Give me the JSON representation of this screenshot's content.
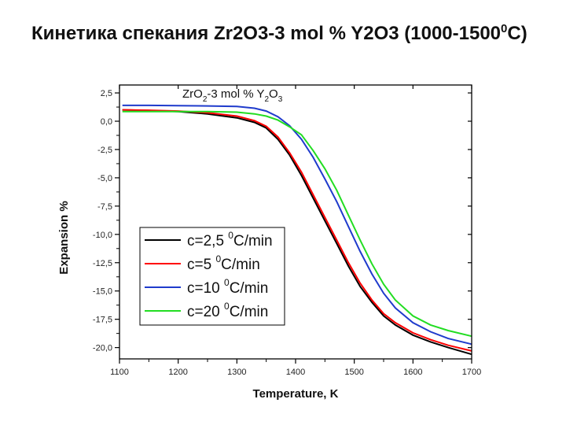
{
  "slide": {
    "title_prefix": "Кинетика спекания   Zr2O3-3 mol % Y2O3 (1000-1500",
    "title_degree": "0",
    "title_suffix": "C)"
  },
  "chart_data": {
    "type": "line",
    "title_parts": [
      {
        "text": "ZrO",
        "sub": false
      },
      {
        "text": "2",
        "sub": true
      },
      {
        "text": "-3 mol % Y",
        "sub": false
      },
      {
        "text": "2",
        "sub": true
      },
      {
        "text": "O",
        "sub": false
      },
      {
        "text": "3",
        "sub": true
      }
    ],
    "xlabel": "Temperature, K",
    "ylabel": "Expansion %",
    "xlim": [
      1100,
      1700
    ],
    "ylim": [
      -21.0,
      3.2
    ],
    "x_ticks": [
      1100,
      1200,
      1300,
      1400,
      1500,
      1600,
      1700
    ],
    "x_tick_labels": [
      "1100",
      "1200",
      "1300",
      "1400",
      "1500",
      "1600",
      "1700"
    ],
    "y_ticks": [
      2.5,
      0,
      -2.5,
      -5,
      -7.5,
      -10,
      -12.5,
      -15,
      -17.5,
      -20
    ],
    "y_tick_labels": [
      "2,5",
      "0,0",
      "-2,5",
      "-5,0",
      "-7,5",
      "-10,0",
      "-12,5",
      "-15,0",
      "-17,5",
      "-20,0"
    ],
    "legend_position": "bottom-left",
    "series": [
      {
        "name": "c=2,5",
        "unit": "C/min",
        "color": "#000000",
        "x": [
          1105,
          1150,
          1200,
          1250,
          1300,
          1330,
          1350,
          1370,
          1390,
          1410,
          1430,
          1450,
          1470,
          1490,
          1510,
          1530,
          1550,
          1570,
          1600,
          1630,
          1660,
          1700
        ],
        "y": [
          1.0,
          0.95,
          0.85,
          0.65,
          0.3,
          -0.1,
          -0.6,
          -1.6,
          -3.0,
          -4.8,
          -6.8,
          -8.8,
          -10.8,
          -12.8,
          -14.6,
          -16.0,
          -17.2,
          -18.0,
          -18.9,
          -19.5,
          -20.0,
          -20.6
        ]
      },
      {
        "name": "c=5",
        "unit": "C/min",
        "color": "#ff0000",
        "x": [
          1105,
          1150,
          1200,
          1250,
          1300,
          1330,
          1350,
          1370,
          1390,
          1410,
          1430,
          1450,
          1470,
          1490,
          1510,
          1530,
          1550,
          1570,
          1600,
          1630,
          1660,
          1700
        ],
        "y": [
          1.0,
          0.97,
          0.9,
          0.75,
          0.45,
          0.05,
          -0.45,
          -1.4,
          -2.8,
          -4.5,
          -6.5,
          -8.5,
          -10.5,
          -12.5,
          -14.3,
          -15.8,
          -17.0,
          -17.8,
          -18.7,
          -19.3,
          -19.8,
          -20.3
        ]
      },
      {
        "name": "c=10",
        "unit": "C/min",
        "color": "#1f3bcc",
        "x": [
          1105,
          1150,
          1200,
          1250,
          1300,
          1330,
          1350,
          1370,
          1390,
          1410,
          1430,
          1450,
          1470,
          1490,
          1510,
          1530,
          1550,
          1570,
          1600,
          1630,
          1660,
          1700
        ],
        "y": [
          1.4,
          1.4,
          1.38,
          1.35,
          1.3,
          1.15,
          0.9,
          0.4,
          -0.4,
          -1.6,
          -3.2,
          -5.1,
          -7.1,
          -9.3,
          -11.5,
          -13.5,
          -15.2,
          -16.5,
          -17.8,
          -18.6,
          -19.2,
          -19.7
        ]
      },
      {
        "name": "c=20",
        "unit": "C/min",
        "color": "#22dd22",
        "x": [
          1105,
          1150,
          1200,
          1250,
          1300,
          1330,
          1350,
          1370,
          1390,
          1410,
          1430,
          1450,
          1470,
          1490,
          1510,
          1530,
          1550,
          1570,
          1600,
          1630,
          1660,
          1700
        ],
        "y": [
          0.85,
          0.85,
          0.85,
          0.85,
          0.8,
          0.65,
          0.45,
          0.1,
          -0.5,
          -1.2,
          -2.6,
          -4.2,
          -6.1,
          -8.3,
          -10.5,
          -12.6,
          -14.4,
          -15.8,
          -17.2,
          -18.0,
          -18.5,
          -19.0
        ]
      }
    ],
    "legend_degree": "0"
  }
}
